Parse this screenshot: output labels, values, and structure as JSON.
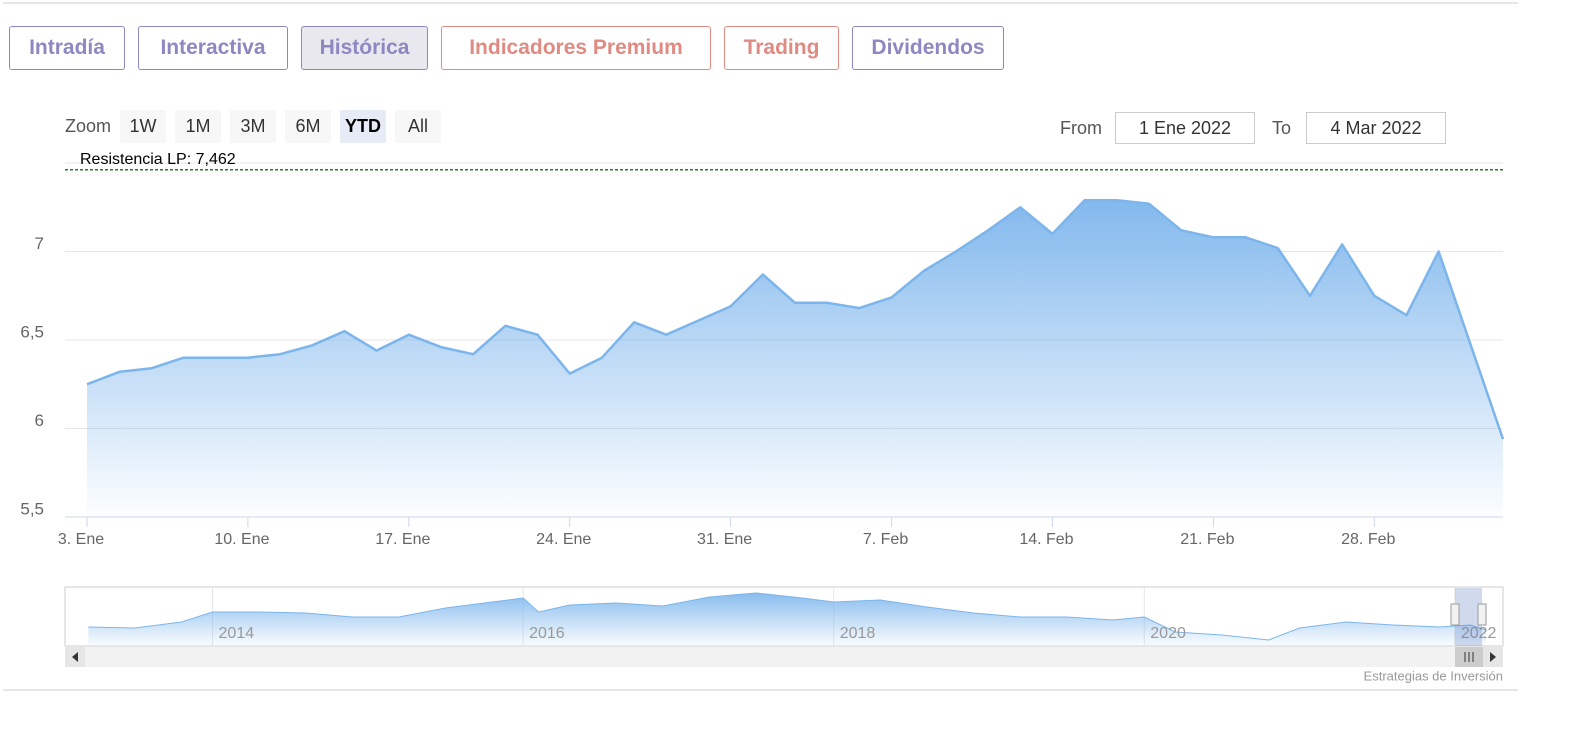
{
  "tabs": [
    {
      "label": "Intradía",
      "color": "#8e88c2"
    },
    {
      "label": "Interactiva",
      "color": "#8e88c2"
    },
    {
      "label": "Histórica",
      "color": "#8e88c2"
    },
    {
      "label": "Indicadores Premium",
      "color": "#df8a82"
    },
    {
      "label": "Trading",
      "color": "#df8a82"
    },
    {
      "label": "Dividendos",
      "color": "#8e88c2"
    }
  ],
  "active_tab": "Histórica",
  "zoom": {
    "label": "Zoom",
    "buttons": [
      "1W",
      "1M",
      "3M",
      "6M",
      "YTD",
      "All"
    ],
    "selected": "YTD"
  },
  "range": {
    "from_label": "From",
    "from": "1 Ene 2022",
    "to_label": "To",
    "to": "4 Mar 2022"
  },
  "chart_data": {
    "type": "area",
    "color": "#7cb5ec",
    "grid": true,
    "x": [
      "2022-01-03",
      "2022-01-04",
      "2022-01-05",
      "2022-01-06",
      "2022-01-07",
      "2022-01-10",
      "2022-01-11",
      "2022-01-12",
      "2022-01-13",
      "2022-01-14",
      "2022-01-17",
      "2022-01-18",
      "2022-01-19",
      "2022-01-20",
      "2022-01-21",
      "2022-01-24",
      "2022-01-25",
      "2022-01-26",
      "2022-01-27",
      "2022-01-28",
      "2022-01-31",
      "2022-02-01",
      "2022-02-02",
      "2022-02-03",
      "2022-02-04",
      "2022-02-07",
      "2022-02-08",
      "2022-02-09",
      "2022-02-10",
      "2022-02-11",
      "2022-02-14",
      "2022-02-15",
      "2022-02-16",
      "2022-02-17",
      "2022-02-18",
      "2022-02-21",
      "2022-02-22",
      "2022-02-23",
      "2022-02-24",
      "2022-02-25",
      "2022-02-28",
      "2022-03-01",
      "2022-03-02",
      "2022-03-03",
      "2022-03-04"
    ],
    "values": [
      6.25,
      6.32,
      6.34,
      6.4,
      6.4,
      6.4,
      6.42,
      6.47,
      6.55,
      6.44,
      6.53,
      6.46,
      6.42,
      6.58,
      6.53,
      6.31,
      6.4,
      6.6,
      6.53,
      6.61,
      6.69,
      6.87,
      6.71,
      6.71,
      6.68,
      6.74,
      6.89,
      7.0,
      7.12,
      7.25,
      7.1,
      7.29,
      7.29,
      7.27,
      7.12,
      7.08,
      7.08,
      7.02,
      6.75,
      7.04,
      6.75,
      6.64,
      7.0,
      6.47,
      5.94
    ],
    "ylim": [
      5.5,
      7.5
    ],
    "yticks": [
      {
        "value": 5.5,
        "label": "5,5"
      },
      6,
      {
        "value": 6.5,
        "label": "6,5"
      },
      7
    ],
    "xticks": [
      {
        "value": "2022-01-03",
        "label": "3. Ene"
      },
      {
        "value": "2022-01-10",
        "label": "10. Ene"
      },
      {
        "value": "2022-01-17",
        "label": "17. Ene"
      },
      {
        "value": "2022-01-24",
        "label": "24. Ene"
      },
      {
        "value": "2022-01-31",
        "label": "31. Ene"
      },
      {
        "value": "2022-02-07",
        "label": "7. Feb"
      },
      {
        "value": "2022-02-14",
        "label": "14. Feb"
      },
      {
        "value": "2022-02-21",
        "label": "21. Feb"
      },
      {
        "value": "2022-02-28",
        "label": "28. Feb"
      }
    ],
    "plot_line": {
      "value": 7.462,
      "label": "Resistencia LP: 7,462",
      "color": "#2a7a2a"
    }
  },
  "navigator": {
    "type": "area",
    "color": "#7cb5ec",
    "x": [
      2013.2,
      2013.5,
      2013.8,
      2014.0,
      2014.3,
      2014.6,
      2014.9,
      2015.2,
      2015.5,
      2015.8,
      2016.0,
      2016.1,
      2016.3,
      2016.6,
      2016.9,
      2017.2,
      2017.5,
      2017.8,
      2018.0,
      2018.3,
      2018.6,
      2018.9,
      2019.2,
      2019.5,
      2019.8,
      2020.0,
      2020.2,
      2020.5,
      2020.8,
      2021.0,
      2021.3,
      2021.6,
      2021.9,
      2022.1,
      2022.2
    ],
    "values": [
      6.3,
      6.2,
      6.8,
      7.8,
      7.8,
      7.7,
      7.3,
      7.3,
      8.2,
      8.8,
      9.2,
      7.8,
      8.5,
      8.7,
      8.4,
      9.3,
      9.7,
      9.2,
      8.8,
      9.0,
      8.3,
      7.7,
      7.3,
      7.3,
      7.0,
      7.3,
      5.8,
      5.5,
      5.0,
      6.2,
      6.8,
      6.5,
      6.3,
      6.5,
      6.0
    ],
    "xlim": [
      2013.05,
      2022.31
    ],
    "ylim": [
      4.5,
      10.0
    ],
    "xticks": [
      2014,
      2016,
      2018,
      2020,
      2022
    ]
  },
  "credits": "Estrategias de Inversión"
}
